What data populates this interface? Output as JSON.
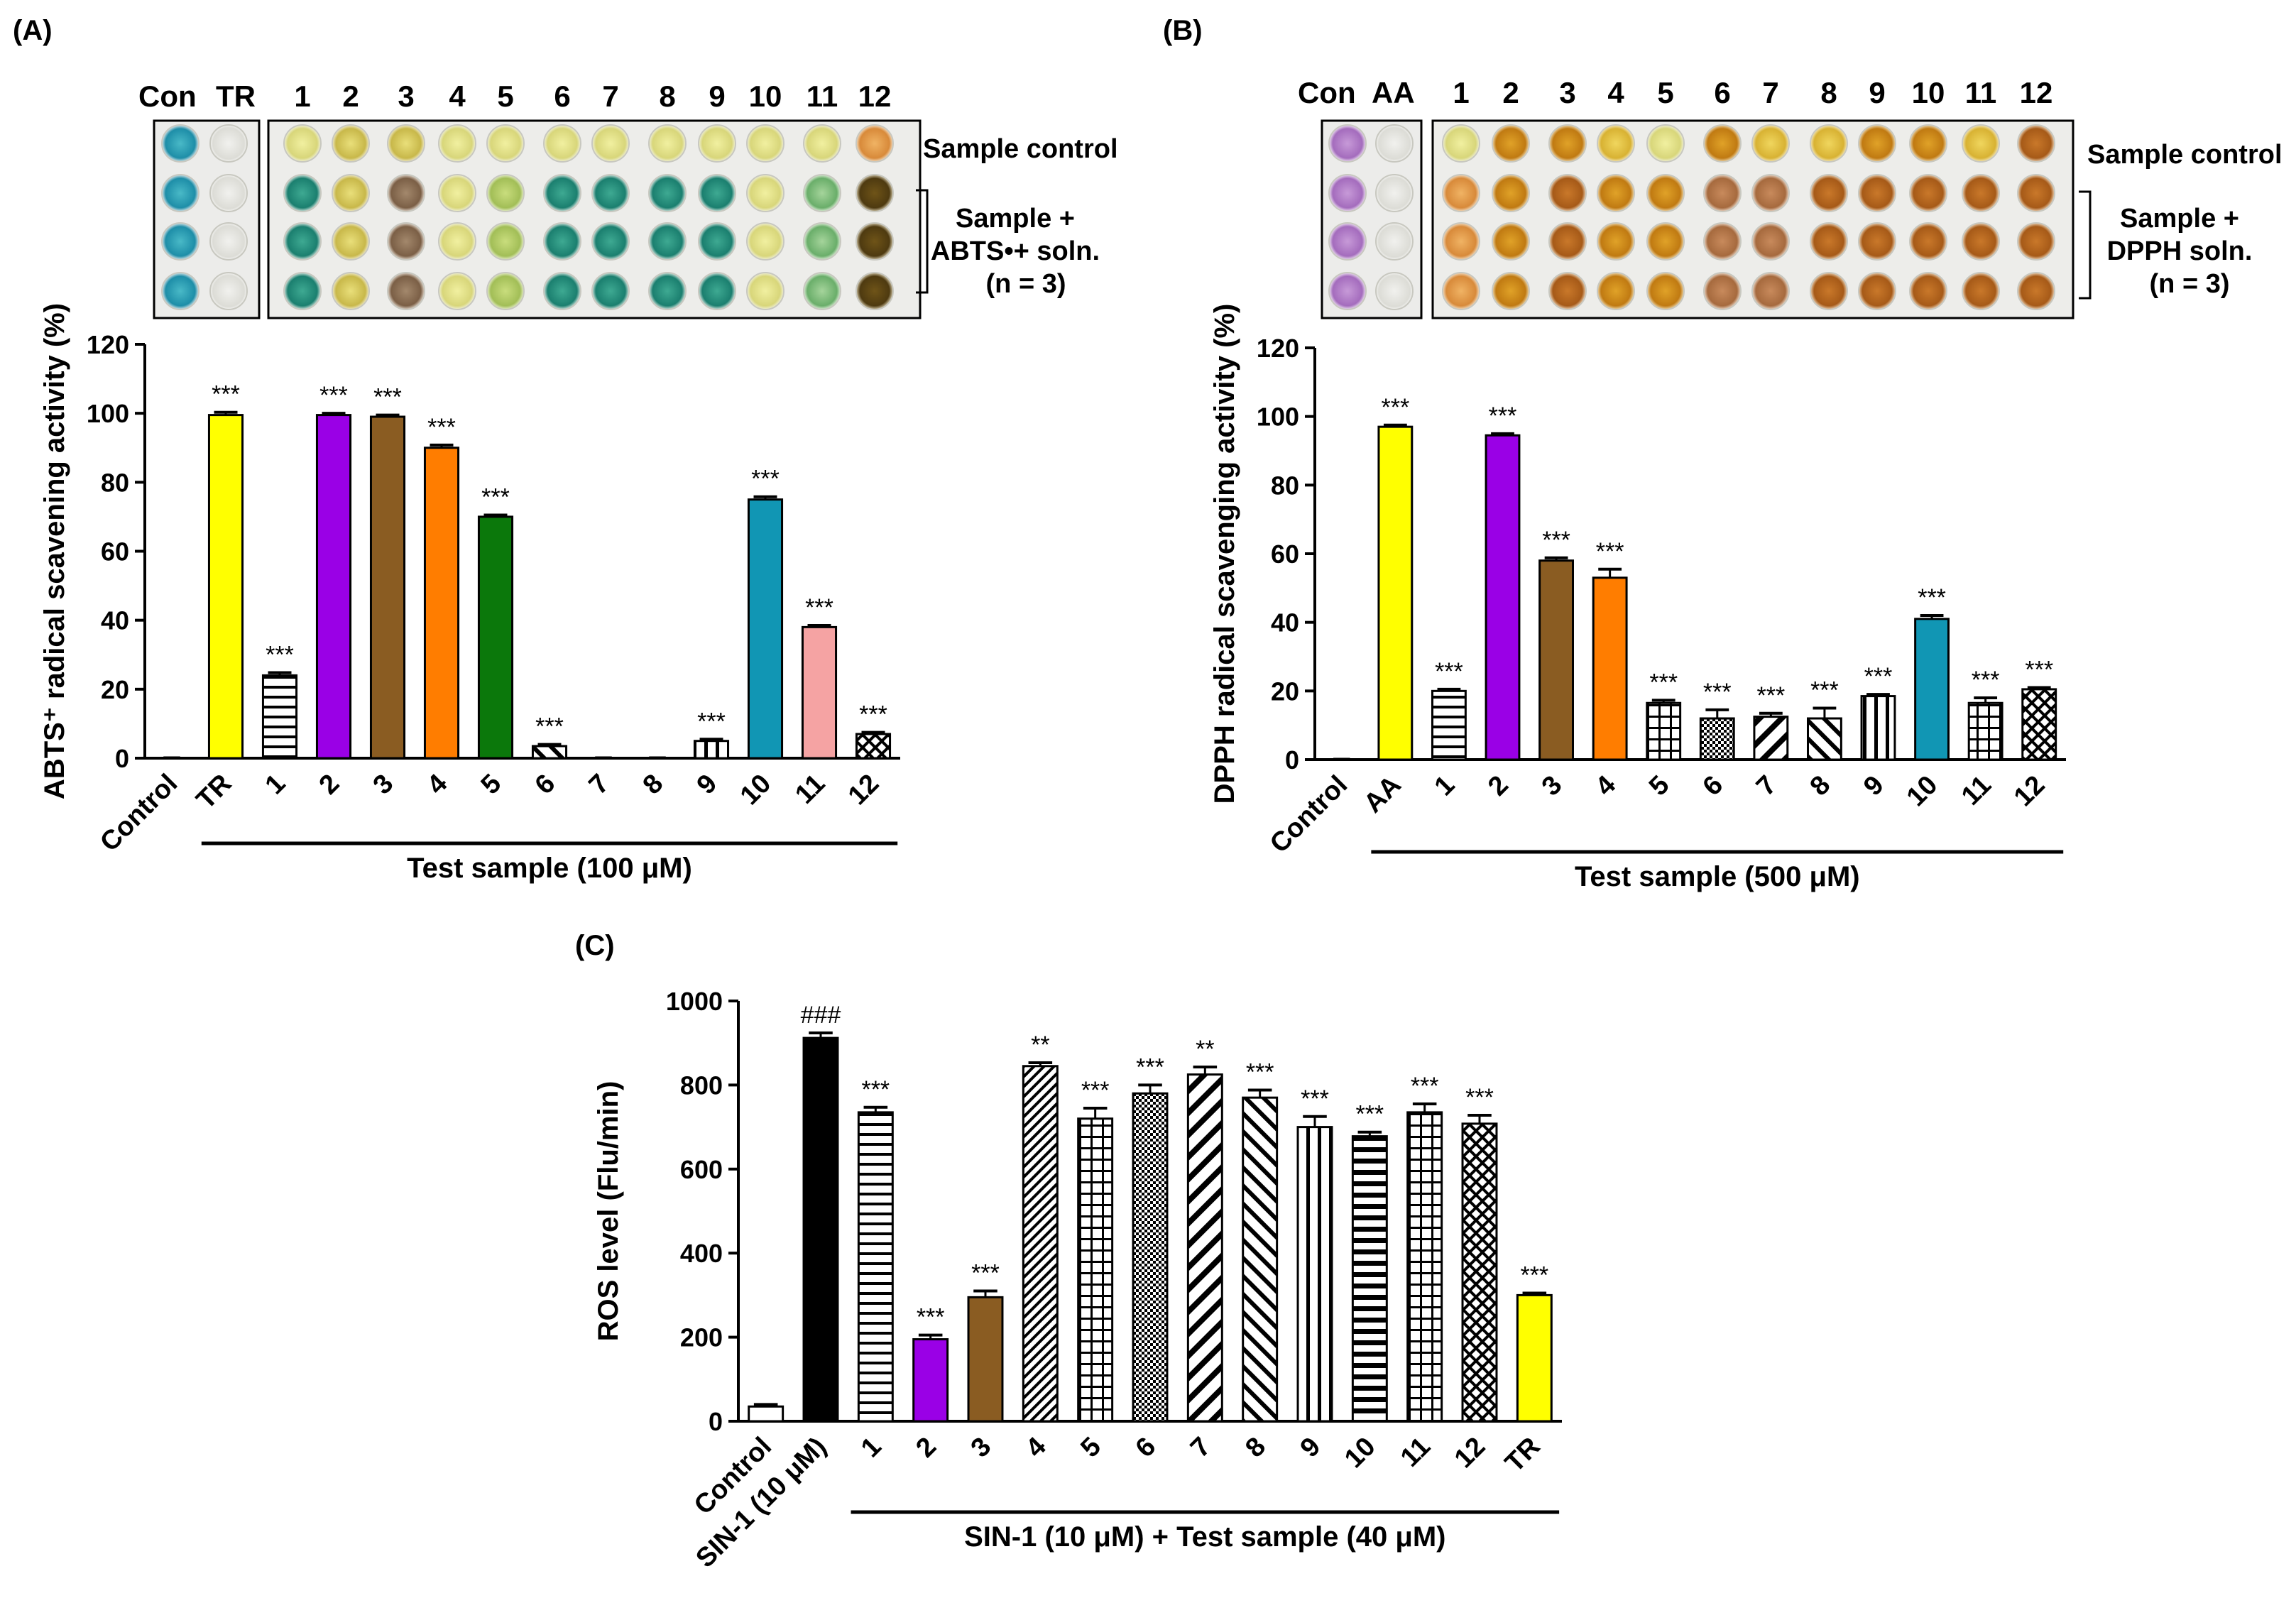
{
  "colors": {
    "yellow": "#ffff00",
    "purple": "#9a00e6",
    "brown": "#8a5c22",
    "orange": "#ff7d00",
    "green": "#0b780b",
    "teal": "#1196b4",
    "pink": "#f5a3a3",
    "black": "#000000",
    "white": "#ffffff"
  },
  "panels": [
    {
      "id": "A",
      "label": "(A)",
      "photo": {
        "lanes_left": [
          "Con",
          "TR"
        ],
        "lanes_right": [
          "1",
          "2",
          "3",
          "4",
          "5",
          "6",
          "7",
          "8",
          "9",
          "10",
          "11",
          "12"
        ],
        "sample_control": "Sample control",
        "bracket_lines": [
          "Sample +",
          "ABTS•+ soln.",
          "(n = 3)"
        ]
      },
      "chart_data": {
        "type": "bar",
        "title": "",
        "ylabel": "ABTS⁺ radical scavening activity (%)",
        "xlabel": "Test sample (100 μM)",
        "ylim": [
          0,
          120
        ],
        "yticks": [
          0,
          20,
          40,
          60,
          80,
          100,
          120
        ],
        "categories": [
          "Control",
          "TR",
          "1",
          "2",
          "3",
          "4",
          "5",
          "6",
          "7",
          "8",
          "9",
          "10",
          "11",
          "12"
        ],
        "values": [
          0,
          99.5,
          24,
          99.5,
          99,
          90,
          70,
          3.5,
          0,
          0,
          5,
          75,
          38,
          7
        ],
        "errors": [
          0,
          0.8,
          0.8,
          0.5,
          0.5,
          0.8,
          0.5,
          0.5,
          0,
          0,
          0.5,
          0.8,
          0.5,
          0.5
        ],
        "annotations": [
          "",
          "***",
          "***",
          "***",
          "***",
          "***",
          "***",
          "***",
          "",
          "",
          "***",
          "***",
          "***",
          "***"
        ],
        "fills": [
          "white",
          "yellow",
          "hlines",
          "purple",
          "brown",
          "orange",
          "green",
          "diag",
          "white",
          "white",
          "vlines",
          "teal",
          "pink",
          "cross"
        ]
      }
    },
    {
      "id": "B",
      "label": "(B)",
      "photo": {
        "lanes_left": [
          "Con",
          "AA"
        ],
        "lanes_right": [
          "1",
          "2",
          "3",
          "4",
          "5",
          "6",
          "7",
          "8",
          "9",
          "10",
          "11",
          "12"
        ],
        "sample_control": "Sample control",
        "bracket_lines": [
          "Sample +",
          "DPPH soln.",
          "(n = 3)"
        ]
      },
      "chart_data": {
        "type": "bar",
        "title": "",
        "ylabel": "DPPH radical scavenging activity (%)",
        "xlabel": "Test sample (500 μM)",
        "ylim": [
          0,
          120
        ],
        "yticks": [
          0,
          20,
          40,
          60,
          80,
          100,
          120
        ],
        "categories": [
          "Control",
          "AA",
          "1",
          "2",
          "3",
          "4",
          "5",
          "6",
          "7",
          "8",
          "9",
          "10",
          "11",
          "12"
        ],
        "values": [
          0,
          97,
          20,
          94.5,
          58,
          53,
          16.5,
          12,
          12.5,
          12,
          18.5,
          41,
          16.5,
          20.5
        ],
        "errors": [
          0,
          0.5,
          0.5,
          0.5,
          0.8,
          2.5,
          0.8,
          2.5,
          1,
          3,
          0.5,
          1,
          1.5,
          0.5
        ],
        "annotations": [
          "",
          "***",
          "***",
          "***",
          "***",
          "***",
          "***",
          "***",
          "***",
          "***",
          "***",
          "***",
          "***",
          "***"
        ],
        "fills": [
          "white",
          "yellow",
          "hlines",
          "purple",
          "brown",
          "orange",
          "grid",
          "dots",
          "diag-bw",
          "diag",
          "vlines",
          "teal",
          "grid",
          "cross"
        ]
      }
    },
    {
      "id": "C",
      "label": "(C)",
      "chart_data": {
        "type": "bar",
        "title": "",
        "ylabel": "ROS level (Flu/min)",
        "xlabel": "SIN-1 (10 μM) + Test sample (40 μM)",
        "ylim": [
          0,
          1000
        ],
        "yticks": [
          0,
          200,
          400,
          600,
          800,
          1000
        ],
        "categories": [
          "Control",
          "SIN-1 (10 μM)",
          "1",
          "2",
          "3",
          "4",
          "5",
          "6",
          "7",
          "8",
          "9",
          "10",
          "11",
          "12",
          "TR"
        ],
        "values": [
          35,
          912,
          735,
          195,
          295,
          845,
          720,
          780,
          825,
          770,
          700,
          678,
          735,
          708,
          300
        ],
        "errors": [
          5,
          12,
          12,
          10,
          15,
          8,
          25,
          20,
          18,
          18,
          25,
          10,
          20,
          20,
          5
        ],
        "annotations": [
          "",
          "###",
          "***",
          "***",
          "***",
          "**",
          "***",
          "***",
          "**",
          "***",
          "***",
          "***",
          "***",
          "***",
          "***"
        ],
        "fills": [
          "white",
          "black",
          "hlines",
          "purple",
          "brown",
          "diag-dense",
          "grid",
          "dots",
          "diag-bw",
          "diag",
          "vlines",
          "hlines-thick",
          "grid",
          "cross",
          "yellow"
        ]
      }
    }
  ]
}
